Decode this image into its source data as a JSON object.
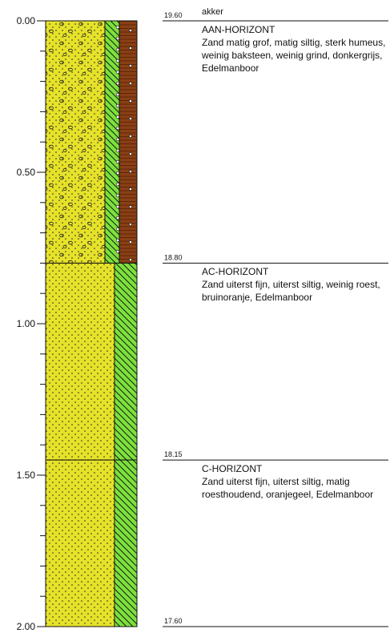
{
  "depth_axis": {
    "unit": "m",
    "range": [
      0.0,
      2.0
    ],
    "major_ticks": [
      "0.00",
      "0.50",
      "1.00",
      "1.50",
      "2.00"
    ],
    "minor_step": 0.1
  },
  "top_label": "akker",
  "layers": [
    {
      "top_depth": 0.0,
      "bottom_depth": 0.8,
      "level_label": "19.60",
      "title": "AAN-HORIZONT",
      "description": "Zand matig grof, matig siltig, sterk humeus, weinig baksteen, weinig grind, donkergrijs, Edelmanboor",
      "columns": [
        "sand-with-gravel",
        "humus-hatch",
        "brick"
      ]
    },
    {
      "top_depth": 0.8,
      "bottom_depth": 1.45,
      "level_label": "18.80",
      "title": "AC-HORIZONT",
      "description": "Zand uiterst fijn, uiterst siltig, weinig roest, bruinoranje, Edelmanboor",
      "columns": [
        "sand",
        "silt-hatch"
      ]
    },
    {
      "top_depth": 1.45,
      "bottom_depth": 2.0,
      "level_label": "18.15",
      "title": "C-HORIZONT",
      "description": "Zand uiterst fijn, uiterst siltig, matig roesthoudend, oranjegeel, Edelmanboor",
      "columns": [
        "sand",
        "silt-hatch"
      ]
    }
  ],
  "bottom_level_label": "17.60",
  "colors": {
    "sand": "#e6e22a",
    "silt": "#7ce23c",
    "brick": "#8b3f14",
    "line": "#111111"
  }
}
